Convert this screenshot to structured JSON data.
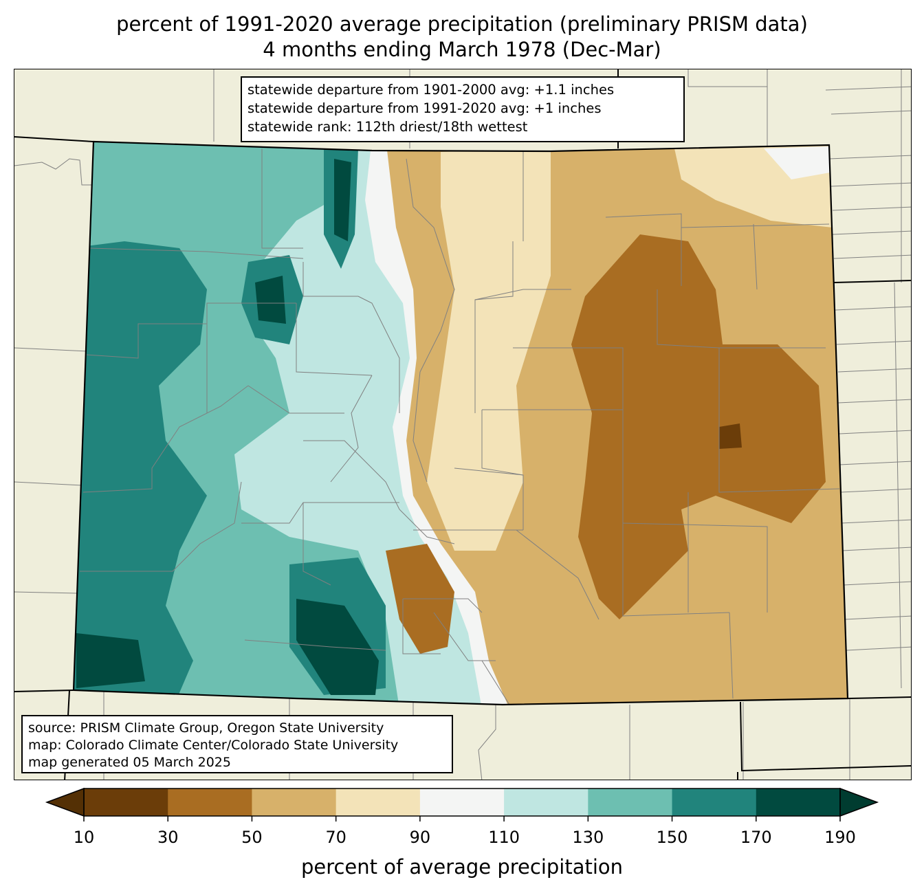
{
  "title": {
    "line1": "percent of 1991-2020 average precipitation (preliminary PRISM data)",
    "line2": "4 months ending March 1978 (Dec-Mar)"
  },
  "stats": {
    "line1": "statewide departure from 1901-2000 avg: +1.1 inches",
    "line2": "statewide departure from 1991-2020 avg: +1 inches",
    "line3": "statewide rank: 112th driest/18th wettest"
  },
  "source": {
    "line1": "source: PRISM Climate Group, Oregon State University",
    "line2": "map: Colorado Climate Center/Colorado State University",
    "line3": "map generated 05 March 2025"
  },
  "colorbar": {
    "label": "percent of average precipitation",
    "ticks": [
      "10",
      "30",
      "50",
      "70",
      "90",
      "110",
      "130",
      "150",
      "170",
      "190"
    ],
    "colors": [
      "#6b3d09",
      "#a96d22",
      "#d7b16a",
      "#f3e3b8",
      "#f4f5f4",
      "#bfe6e1",
      "#6dbfb1",
      "#21847c",
      "#014a3f"
    ],
    "under_color": "#543005",
    "over_color": "#003c30"
  },
  "map_colors": {
    "land": "#efeedb",
    "state_border": "#000000",
    "county_border": "#808080"
  }
}
